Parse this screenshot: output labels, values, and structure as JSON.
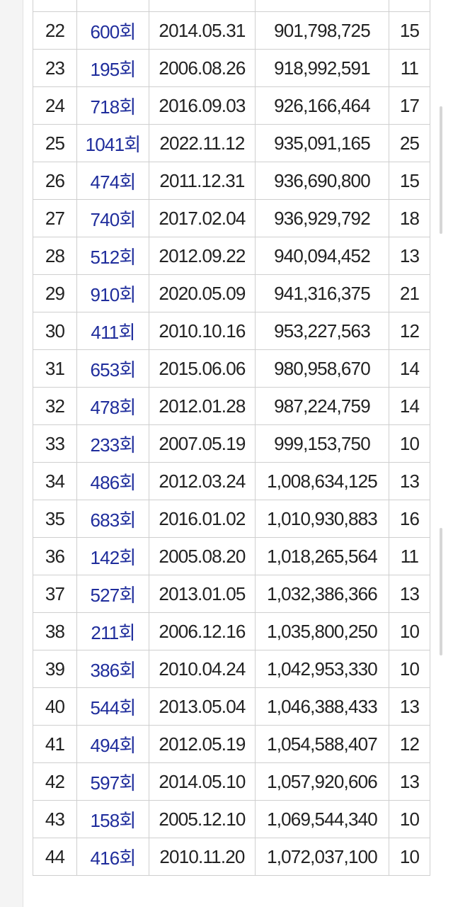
{
  "table": {
    "rows": [
      [
        "22",
        "600회",
        "2014.05.31",
        "901,798,725",
        "15"
      ],
      [
        "23",
        "195회",
        "2006.08.26",
        "918,992,591",
        "11"
      ],
      [
        "24",
        "718회",
        "2016.09.03",
        "926,166,464",
        "17"
      ],
      [
        "25",
        "1041회",
        "2022.11.12",
        "935,091,165",
        "25"
      ],
      [
        "26",
        "474회",
        "2011.12.31",
        "936,690,800",
        "15"
      ],
      [
        "27",
        "740회",
        "2017.02.04",
        "936,929,792",
        "18"
      ],
      [
        "28",
        "512회",
        "2012.09.22",
        "940,094,452",
        "13"
      ],
      [
        "29",
        "910회",
        "2020.05.09",
        "941,316,375",
        "21"
      ],
      [
        "30",
        "411회",
        "2010.10.16",
        "953,227,563",
        "12"
      ],
      [
        "31",
        "653회",
        "2015.06.06",
        "980,958,670",
        "14"
      ],
      [
        "32",
        "478회",
        "2012.01.28",
        "987,224,759",
        "14"
      ],
      [
        "33",
        "233회",
        "2007.05.19",
        "999,153,750",
        "10"
      ],
      [
        "34",
        "486회",
        "2012.03.24",
        "1,008,634,125",
        "13"
      ],
      [
        "35",
        "683회",
        "2016.01.02",
        "1,010,930,883",
        "16"
      ],
      [
        "36",
        "142회",
        "2005.08.20",
        "1,018,265,564",
        "11"
      ],
      [
        "37",
        "527회",
        "2013.01.05",
        "1,032,386,366",
        "13"
      ],
      [
        "38",
        "211회",
        "2006.12.16",
        "1,035,800,250",
        "10"
      ],
      [
        "39",
        "386회",
        "2010.04.24",
        "1,042,953,330",
        "10"
      ],
      [
        "40",
        "544회",
        "2013.05.04",
        "1,046,388,433",
        "13"
      ],
      [
        "41",
        "494회",
        "2012.05.19",
        "1,054,588,407",
        "12"
      ],
      [
        "42",
        "597회",
        "2014.05.10",
        "1,057,920,606",
        "13"
      ],
      [
        "43",
        "158회",
        "2005.12.10",
        "1,069,544,340",
        "10"
      ],
      [
        "44",
        "416회",
        "2010.11.20",
        "1,072,037,100",
        "10"
      ]
    ]
  }
}
